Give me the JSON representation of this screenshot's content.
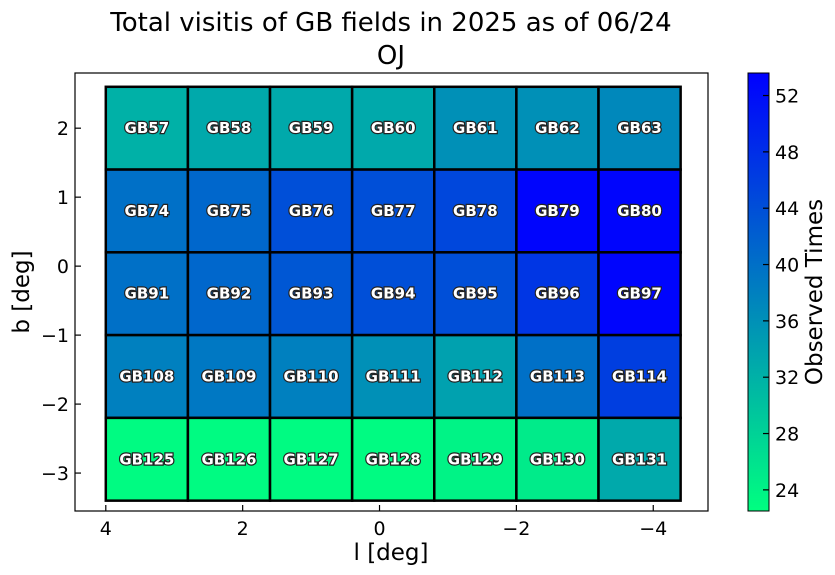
{
  "chart_data": {
    "type": "heatmap",
    "title": "Total visitis of GB fields in 2025 as of 06/24",
    "subtitle": "OJ",
    "xlabel": "l [deg]",
    "ylabel": "b [deg]",
    "xlim": [
      4.45,
      -4.8
    ],
    "ylim": [
      -3.55,
      2.8
    ],
    "x_ticks": [
      4,
      2,
      0,
      -2,
      -4
    ],
    "x_tick_labels": [
      "4",
      "2",
      "0",
      "−2",
      "−4"
    ],
    "y_ticks": [
      2,
      1,
      0,
      -1,
      -2,
      -3
    ],
    "y_tick_labels": [
      "2",
      "1",
      "0",
      "−1",
      "−2",
      "−3"
    ],
    "grid": false,
    "colormap": {
      "low": "#00ff80",
      "high": "#0000ff"
    },
    "colorbar": {
      "label": "Observed Times",
      "range": [
        22.5,
        53.6
      ],
      "ticks": [
        24,
        28,
        32,
        36,
        40,
        44,
        48,
        52
      ],
      "tick_labels": [
        "24",
        "28",
        "32",
        "36",
        "40",
        "44",
        "48",
        "52"
      ]
    },
    "columns_l": [
      3.4,
      2.2,
      1.0,
      -0.2,
      -1.4,
      -2.6,
      -3.8
    ],
    "rows_b": [
      2.0,
      0.8,
      -0.4,
      -1.6,
      -2.8
    ],
    "cell_width_deg": 1.2,
    "cell_height_deg": 1.2,
    "fields": [
      {
        "name": "GB57",
        "value": 32
      },
      {
        "name": "GB58",
        "value": 33
      },
      {
        "name": "GB59",
        "value": 33
      },
      {
        "name": "GB60",
        "value": 33
      },
      {
        "name": "GB61",
        "value": 36
      },
      {
        "name": "GB62",
        "value": 36
      },
      {
        "name": "GB63",
        "value": 37
      },
      {
        "name": "GB74",
        "value": 40
      },
      {
        "name": "GB75",
        "value": 41
      },
      {
        "name": "GB76",
        "value": 44
      },
      {
        "name": "GB77",
        "value": 44
      },
      {
        "name": "GB78",
        "value": 45
      },
      {
        "name": "GB79",
        "value": 53
      },
      {
        "name": "GB80",
        "value": 53
      },
      {
        "name": "GB91",
        "value": 40
      },
      {
        "name": "GB92",
        "value": 41
      },
      {
        "name": "GB93",
        "value": 43
      },
      {
        "name": "GB94",
        "value": 44
      },
      {
        "name": "GB95",
        "value": 44
      },
      {
        "name": "GB96",
        "value": 47
      },
      {
        "name": "GB97",
        "value": 53
      },
      {
        "name": "GB108",
        "value": 38
      },
      {
        "name": "GB109",
        "value": 39
      },
      {
        "name": "GB110",
        "value": 38
      },
      {
        "name": "GB111",
        "value": 36
      },
      {
        "name": "GB112",
        "value": 34
      },
      {
        "name": "GB113",
        "value": 40
      },
      {
        "name": "GB114",
        "value": 46
      },
      {
        "name": "GB125",
        "value": 23
      },
      {
        "name": "GB126",
        "value": 23
      },
      {
        "name": "GB127",
        "value": 23
      },
      {
        "name": "GB128",
        "value": 23
      },
      {
        "name": "GB129",
        "value": 24
      },
      {
        "name": "GB130",
        "value": 25
      },
      {
        "name": "GB131",
        "value": 33
      }
    ]
  }
}
